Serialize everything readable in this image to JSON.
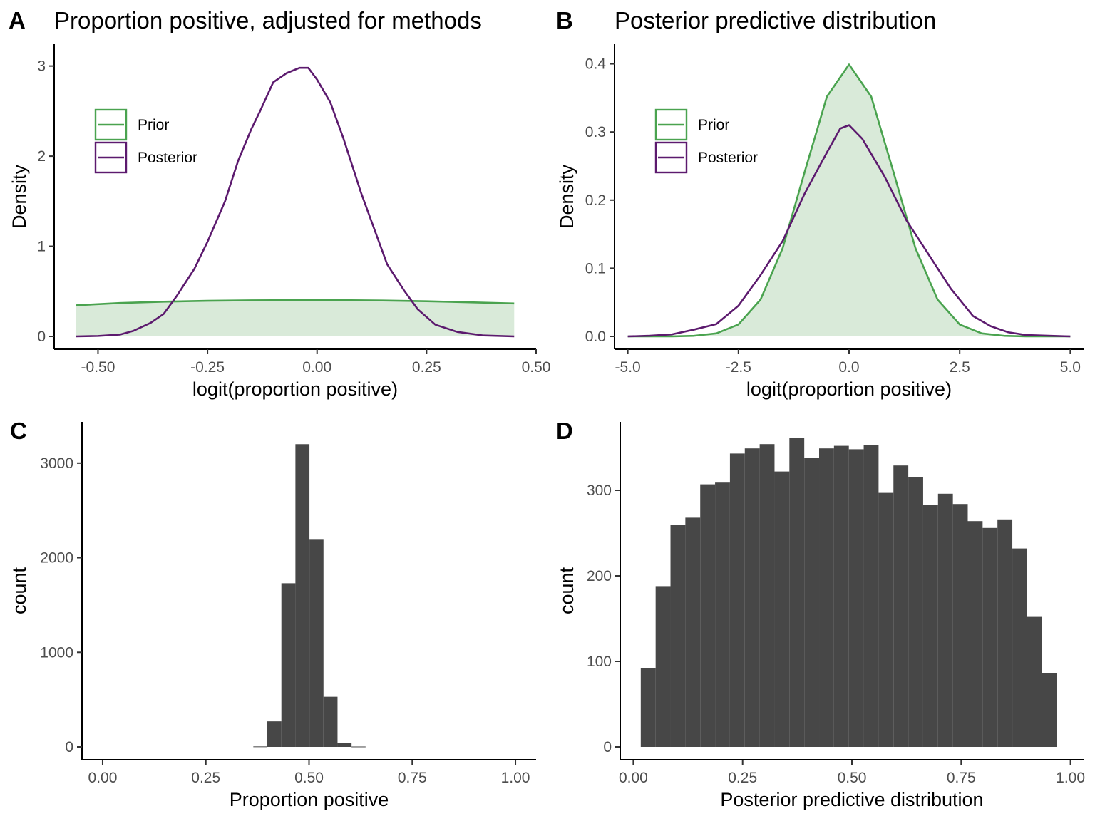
{
  "colors": {
    "prior": "#4aa34f",
    "posterior": "#5c1a6e",
    "bar": "#474747",
    "prior_fill": "#d9ead9"
  },
  "chart_data": [
    {
      "panel": "A",
      "type": "line",
      "title": "Proportion positive, adjusted for methods",
      "xlabel": "logit(proportion positive)",
      "ylabel": "Density",
      "xlim": [
        -0.6,
        0.5
      ],
      "ylim": [
        0,
        3.1
      ],
      "xticks": [
        -0.5,
        -0.25,
        0.0,
        0.25,
        0.5
      ],
      "xtick_labels": [
        "-0.50",
        "-0.25",
        "0.00",
        "0.25",
        "0.50"
      ],
      "yticks": [
        0,
        1,
        2,
        3
      ],
      "ytick_labels": [
        "0",
        "1",
        "2",
        "3"
      ],
      "legend": {
        "position": "top-left",
        "entries": [
          "Prior",
          "Posterior"
        ]
      },
      "series": [
        {
          "name": "Prior",
          "fill": true,
          "points": [
            [
              -0.55,
              0.345
            ],
            [
              -0.45,
              0.37
            ],
            [
              -0.35,
              0.385
            ],
            [
              -0.25,
              0.395
            ],
            [
              -0.15,
              0.4
            ],
            [
              -0.05,
              0.402
            ],
            [
              0.05,
              0.402
            ],
            [
              0.15,
              0.398
            ],
            [
              0.25,
              0.39
            ],
            [
              0.35,
              0.378
            ],
            [
              0.45,
              0.365
            ]
          ]
        },
        {
          "name": "Posterior",
          "fill": false,
          "points": [
            [
              -0.55,
              0.0
            ],
            [
              -0.5,
              0.005
            ],
            [
              -0.45,
              0.02
            ],
            [
              -0.42,
              0.06
            ],
            [
              -0.38,
              0.15
            ],
            [
              -0.35,
              0.25
            ],
            [
              -0.32,
              0.45
            ],
            [
              -0.28,
              0.75
            ],
            [
              -0.25,
              1.05
            ],
            [
              -0.21,
              1.5
            ],
            [
              -0.18,
              1.95
            ],
            [
              -0.15,
              2.3
            ],
            [
              -0.13,
              2.5
            ],
            [
              -0.1,
              2.82
            ],
            [
              -0.07,
              2.92
            ],
            [
              -0.04,
              2.98
            ],
            [
              -0.02,
              2.98
            ],
            [
              0.0,
              2.85
            ],
            [
              0.03,
              2.6
            ],
            [
              0.06,
              2.2
            ],
            [
              0.1,
              1.6
            ],
            [
              0.13,
              1.2
            ],
            [
              0.16,
              0.8
            ],
            [
              0.2,
              0.5
            ],
            [
              0.23,
              0.3
            ],
            [
              0.27,
              0.13
            ],
            [
              0.32,
              0.05
            ],
            [
              0.38,
              0.01
            ],
            [
              0.45,
              0.0
            ]
          ]
        }
      ]
    },
    {
      "panel": "B",
      "type": "line",
      "title": "Posterior predictive distribution",
      "xlabel": "logit(proportion positive)",
      "ylabel": "Density",
      "xlim": [
        -5.3,
        5.3
      ],
      "ylim": [
        0,
        0.41
      ],
      "xticks": [
        -5,
        -2.5,
        0,
        2.5,
        5
      ],
      "xtick_labels": [
        "-5.0",
        "-2.5",
        "0.0",
        "2.5",
        "5.0"
      ],
      "yticks": [
        0,
        0.1,
        0.2,
        0.3,
        0.4
      ],
      "ytick_labels": [
        "0.0",
        "0.1",
        "0.2",
        "0.3",
        "0.4"
      ],
      "legend": {
        "position": "top-left",
        "entries": [
          "Prior",
          "Posterior"
        ]
      },
      "series": [
        {
          "name": "Prior",
          "fill": true,
          "points": [
            [
              -5,
              0.0
            ],
            [
              -4,
              0.0001
            ],
            [
              -3.5,
              0.0009
            ],
            [
              -3,
              0.0044
            ],
            [
              -2.5,
              0.0175
            ],
            [
              -2,
              0.054
            ],
            [
              -1.5,
              0.1295
            ],
            [
              -1,
              0.242
            ],
            [
              -0.5,
              0.352
            ],
            [
              0,
              0.399
            ],
            [
              0.5,
              0.352
            ],
            [
              1,
              0.242
            ],
            [
              1.5,
              0.1295
            ],
            [
              2,
              0.054
            ],
            [
              2.5,
              0.0175
            ],
            [
              3,
              0.0044
            ],
            [
              3.5,
              0.0009
            ],
            [
              4,
              0.0001
            ],
            [
              5,
              0.0
            ]
          ]
        },
        {
          "name": "Posterior",
          "fill": false,
          "points": [
            [
              -5,
              0.0
            ],
            [
              -4.5,
              0.001
            ],
            [
              -4,
              0.003
            ],
            [
              -3.5,
              0.01
            ],
            [
              -3,
              0.018
            ],
            [
              -2.5,
              0.045
            ],
            [
              -2,
              0.09
            ],
            [
              -1.5,
              0.14
            ],
            [
              -1,
              0.21
            ],
            [
              -0.5,
              0.27
            ],
            [
              -0.2,
              0.305
            ],
            [
              0,
              0.31
            ],
            [
              0.3,
              0.29
            ],
            [
              0.8,
              0.235
            ],
            [
              1.3,
              0.17
            ],
            [
              1.8,
              0.12
            ],
            [
              2.3,
              0.07
            ],
            [
              2.8,
              0.03
            ],
            [
              3.2,
              0.015
            ],
            [
              3.6,
              0.006
            ],
            [
              4,
              0.002
            ],
            [
              5,
              0.0
            ]
          ]
        }
      ]
    },
    {
      "panel": "C",
      "type": "bar",
      "title": "",
      "xlabel": "Proportion positive",
      "ylabel": "count",
      "xlim": [
        -0.05,
        1.05
      ],
      "ylim": [
        0,
        3300
      ],
      "xticks": [
        0,
        0.25,
        0.5,
        0.75,
        1.0
      ],
      "xtick_labels": [
        "0.00",
        "0.25",
        "0.50",
        "0.75",
        "1.00"
      ],
      "yticks": [
        0,
        1000,
        2000,
        3000
      ],
      "ytick_labels": [
        "0",
        "1000",
        "2000",
        "3000"
      ],
      "bins": [
        [
          0.365,
          0.399,
          5
        ],
        [
          0.399,
          0.433,
          270
        ],
        [
          0.433,
          0.467,
          1730
        ],
        [
          0.467,
          0.501,
          3200
        ],
        [
          0.501,
          0.535,
          2190
        ],
        [
          0.535,
          0.569,
          530
        ],
        [
          0.569,
          0.603,
          45
        ],
        [
          0.603,
          0.637,
          4
        ]
      ]
    },
    {
      "panel": "D",
      "type": "bar",
      "title": "",
      "xlabel": "Posterior predictive distribution",
      "ylabel": "count",
      "xlim": [
        -0.03,
        1.03
      ],
      "ylim": [
        0,
        365
      ],
      "xticks": [
        0,
        0.25,
        0.5,
        0.75,
        1.0
      ],
      "xtick_labels": [
        "0.00",
        "0.25",
        "0.50",
        "0.75",
        "1.00"
      ],
      "yticks": [
        0,
        100,
        200,
        300
      ],
      "ytick_labels": [
        "0",
        "100",
        "200",
        "300"
      ],
      "bins": [
        [
          0.017,
          0.051,
          92
        ],
        [
          0.051,
          0.085,
          188
        ],
        [
          0.085,
          0.119,
          260
        ],
        [
          0.119,
          0.153,
          268
        ],
        [
          0.153,
          0.187,
          307
        ],
        [
          0.187,
          0.221,
          309
        ],
        [
          0.221,
          0.255,
          343
        ],
        [
          0.255,
          0.289,
          349
        ],
        [
          0.289,
          0.323,
          354
        ],
        [
          0.323,
          0.357,
          322
        ],
        [
          0.357,
          0.391,
          361
        ],
        [
          0.391,
          0.425,
          338
        ],
        [
          0.425,
          0.459,
          349
        ],
        [
          0.459,
          0.493,
          352
        ],
        [
          0.493,
          0.527,
          348
        ],
        [
          0.527,
          0.561,
          353
        ],
        [
          0.561,
          0.595,
          297
        ],
        [
          0.595,
          0.629,
          329
        ],
        [
          0.629,
          0.663,
          315
        ],
        [
          0.663,
          0.697,
          283
        ],
        [
          0.697,
          0.731,
          296
        ],
        [
          0.731,
          0.765,
          284
        ],
        [
          0.765,
          0.799,
          264
        ],
        [
          0.799,
          0.833,
          256
        ],
        [
          0.833,
          0.867,
          266
        ],
        [
          0.867,
          0.901,
          232
        ],
        [
          0.901,
          0.935,
          152
        ],
        [
          0.935,
          0.969,
          86
        ]
      ]
    }
  ]
}
